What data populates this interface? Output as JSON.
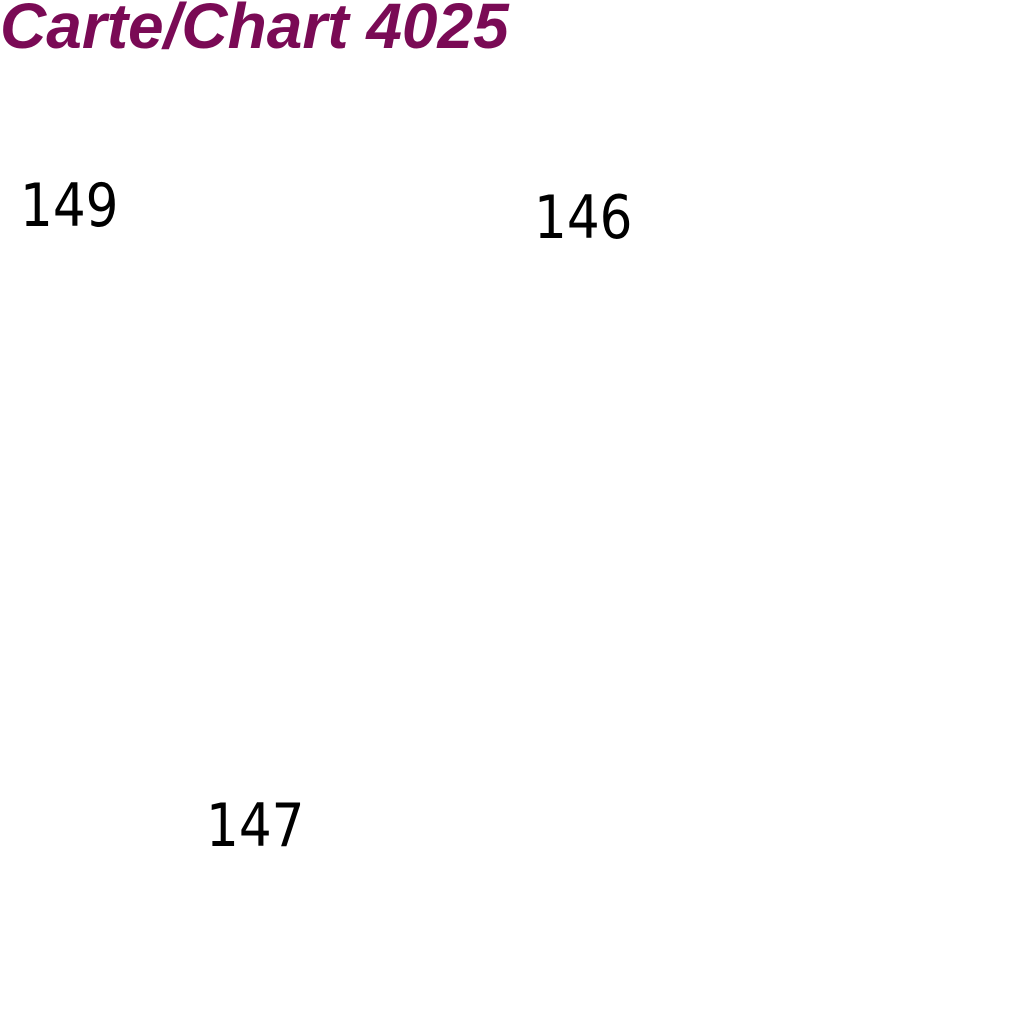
{
  "header": {
    "title": "Carte/Chart 4025"
  },
  "soundings": [
    {
      "label": "149"
    },
    {
      "label": "146"
    },
    {
      "label": "147"
    }
  ],
  "colors": {
    "background": "#ffffff",
    "title": "#7a0a55",
    "soundings": "#000000"
  }
}
